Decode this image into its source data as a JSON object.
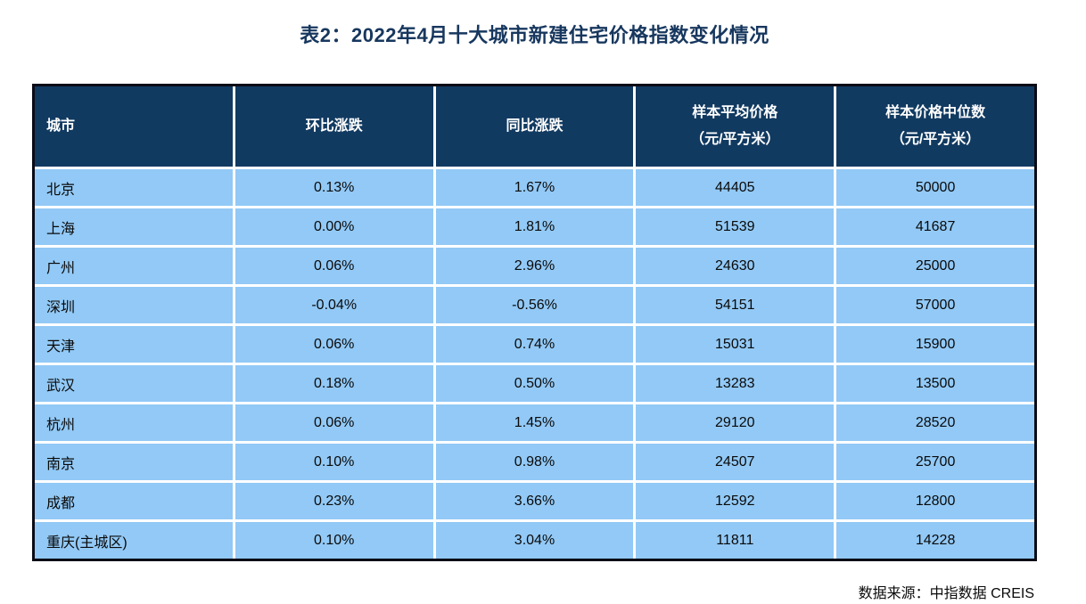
{
  "title": "表2：2022年4月十大城市新建住宅价格指数变化情况",
  "table": {
    "columns": [
      {
        "label": "城市",
        "sub": ""
      },
      {
        "label": "环比涨跌",
        "sub": ""
      },
      {
        "label": "同比涨跌",
        "sub": ""
      },
      {
        "label": "样本平均价格",
        "sub": "（元/平方米）"
      },
      {
        "label": "样本价格中位数",
        "sub": "（元/平方米）"
      }
    ],
    "rows": [
      [
        "北京",
        "0.13%",
        "1.67%",
        "44405",
        "50000"
      ],
      [
        "上海",
        "0.00%",
        "1.81%",
        "51539",
        "41687"
      ],
      [
        "广州",
        "0.06%",
        "2.96%",
        "24630",
        "25000"
      ],
      [
        "深圳",
        "-0.04%",
        "-0.56%",
        "54151",
        "57000"
      ],
      [
        "天津",
        "0.06%",
        "0.74%",
        "15031",
        "15900"
      ],
      [
        "武汉",
        "0.18%",
        "0.50%",
        "13283",
        "13500"
      ],
      [
        "杭州",
        "0.06%",
        "1.45%",
        "29120",
        "28520"
      ],
      [
        "南京",
        "0.10%",
        "0.98%",
        "24507",
        "25700"
      ],
      [
        "成都",
        "0.23%",
        "3.66%",
        "12592",
        "12800"
      ],
      [
        "重庆(主城区)",
        "0.10%",
        "3.04%",
        "11811",
        "14228"
      ]
    ]
  },
  "footer": {
    "source": "数据来源：中指数据 CREIS"
  },
  "colors": {
    "header_bg": "#113a61",
    "row_bg": "#92c9f6",
    "title_text": "#17375e",
    "outer_border": "#0b0b16",
    "separator": "#ffffff",
    "header_text": "#ffffff",
    "body_text": "#0a0a0a"
  },
  "chart_data": {
    "type": "table",
    "title": "表2：2022年4月十大城市新建住宅价格指数变化情况",
    "columns": [
      "城市",
      "环比涨跌",
      "同比涨跌",
      "样本平均价格（元/平方米）",
      "样本价格中位数（元/平方米）"
    ],
    "rows": [
      {
        "城市": "北京",
        "环比涨跌": "0.13%",
        "同比涨跌": "1.67%",
        "样本平均价格": 44405,
        "样本价格中位数": 50000
      },
      {
        "城市": "上海",
        "环比涨跌": "0.00%",
        "同比涨跌": "1.81%",
        "样本平均价格": 51539,
        "样本价格中位数": 41687
      },
      {
        "城市": "广州",
        "环比涨跌": "0.06%",
        "同比涨跌": "2.96%",
        "样本平均价格": 24630,
        "样本价格中位数": 25000
      },
      {
        "城市": "深圳",
        "环比涨跌": "-0.04%",
        "同比涨跌": "-0.56%",
        "样本平均价格": 54151,
        "样本价格中位数": 57000
      },
      {
        "城市": "天津",
        "环比涨跌": "0.06%",
        "同比涨跌": "0.74%",
        "样本平均价格": 15031,
        "样本价格中位数": 15900
      },
      {
        "城市": "武汉",
        "环比涨跌": "0.18%",
        "同比涨跌": "0.50%",
        "样本平均价格": 13283,
        "样本价格中位数": 13500
      },
      {
        "城市": "杭州",
        "环比涨跌": "0.06%",
        "同比涨跌": "1.45%",
        "样本平均价格": 29120,
        "样本价格中位数": 28520
      },
      {
        "城市": "南京",
        "环比涨跌": "0.10%",
        "同比涨跌": "0.98%",
        "样本平均价格": 24507,
        "样本价格中位数": 25700
      },
      {
        "城市": "成都",
        "环比涨跌": "0.23%",
        "同比涨跌": "3.66%",
        "样本平均价格": 12592,
        "样本价格中位数": 12800
      },
      {
        "城市": "重庆(主城区)",
        "环比涨跌": "0.10%",
        "同比涨跌": "3.04%",
        "样本平均价格": 11811,
        "样本价格中位数": 14228
      }
    ],
    "source": "数据来源：中指数据 CREIS"
  }
}
